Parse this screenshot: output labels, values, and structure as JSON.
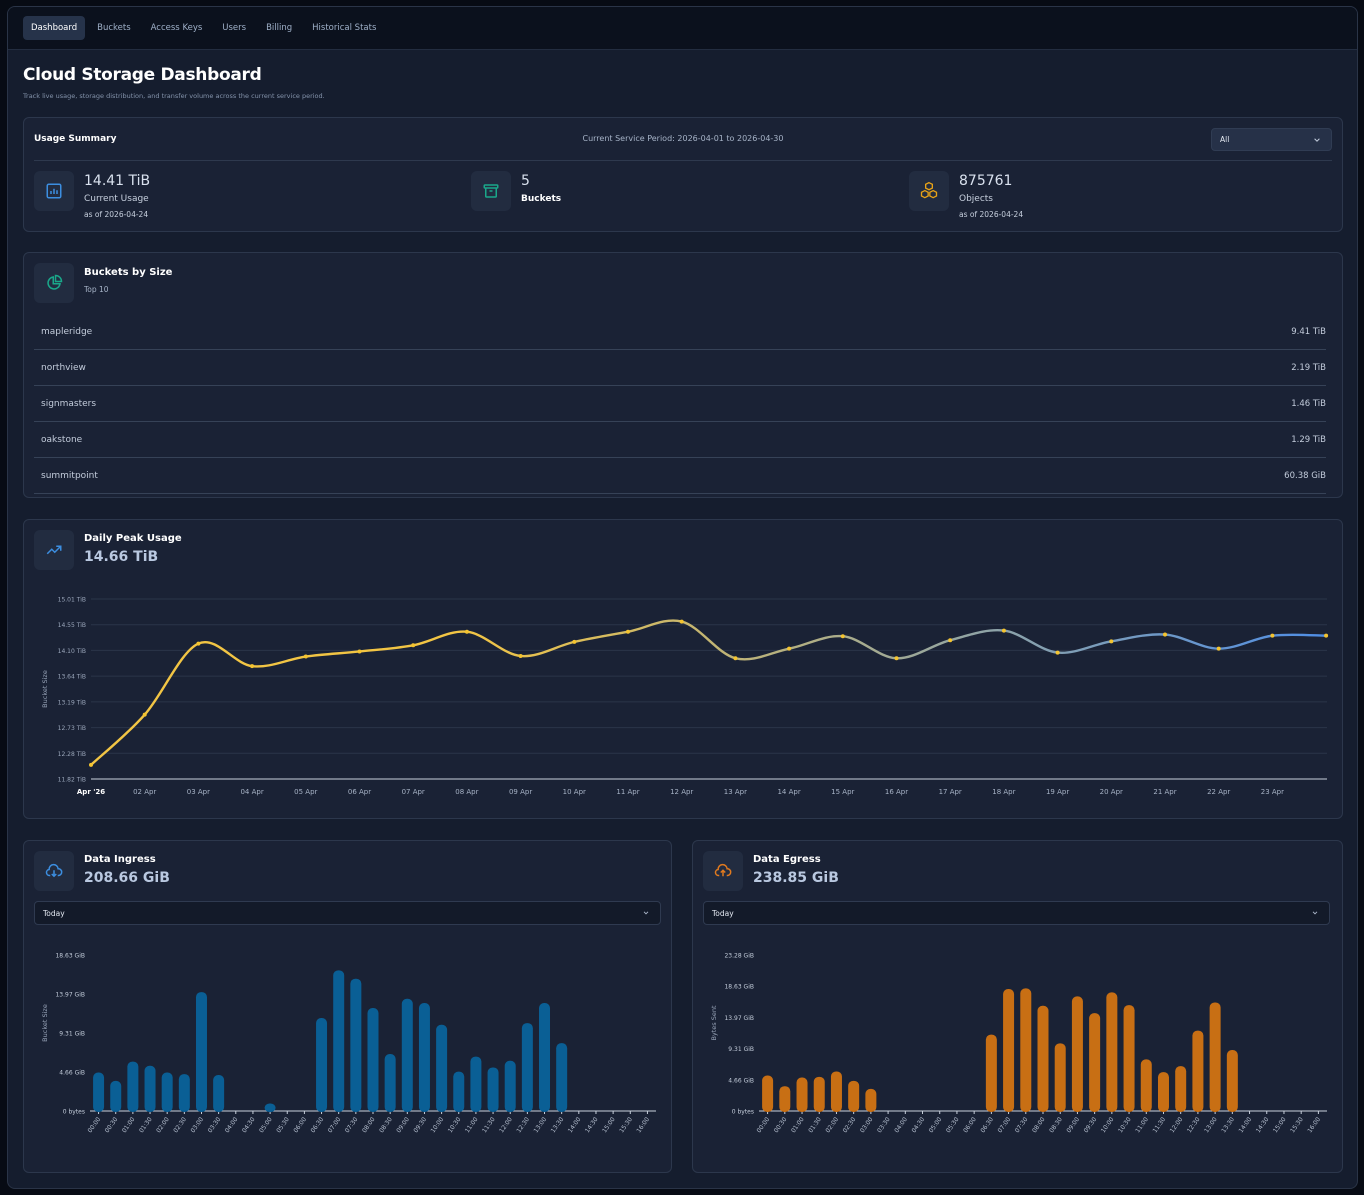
{
  "nav": {
    "tabs": [
      {
        "label": "Dashboard",
        "active": true
      },
      {
        "label": "Buckets"
      },
      {
        "label": "Access Keys"
      },
      {
        "label": "Users"
      },
      {
        "label": "Billing"
      },
      {
        "label": "Historical Stats"
      }
    ]
  },
  "page": {
    "title": "Cloud Storage Dashboard",
    "subtitle": "Track live usage, storage distribution, and transfer volume across the current service period."
  },
  "summary": {
    "title": "Usage Summary",
    "period": "Current Service Period: 2026-04-01 to 2026-04-30",
    "filter_value": "All",
    "current_usage": {
      "value": "14.41 TiB",
      "label": "Current Usage",
      "date": "as of 2026-04-24",
      "icon": "bar-chart-icon"
    },
    "buckets": {
      "value": "5",
      "label": "Buckets",
      "icon": "archive-box-icon"
    },
    "objects": {
      "value": "875761",
      "label": "Objects",
      "date": "as of 2026-04-24",
      "icon": "cubes-icon"
    }
  },
  "buckets_by_size": {
    "title": "Buckets by Size",
    "subtitle": "Top 10",
    "icon": "pie-chart-icon",
    "rows": [
      {
        "name": "mapleridge",
        "size": "9.41 TiB"
      },
      {
        "name": "northview",
        "size": "2.19 TiB"
      },
      {
        "name": "signmasters",
        "size": "1.46 TiB"
      },
      {
        "name": "oakstone",
        "size": "1.29 TiB"
      },
      {
        "name": "summitpoint",
        "size": "60.38 GiB"
      }
    ]
  },
  "peak": {
    "title": "Daily Peak Usage",
    "value": "14.66 TiB",
    "icon": "trending-up-icon"
  },
  "ingress": {
    "title": "Data Ingress",
    "value": "208.66 GiB",
    "range": "Today",
    "icon": "cloud-download-icon"
  },
  "egress": {
    "title": "Data Egress",
    "value": "238.85 GiB",
    "range": "Today",
    "icon": "cloud-upload-icon"
  },
  "colors": {
    "ingress": "#0a5f95",
    "egress": "#c86f14",
    "line_start": "#f2c544",
    "line_end": "#4f8ee6",
    "point": "#f4c430"
  },
  "chart_data": [
    {
      "type": "line",
      "title": "Daily Peak Usage",
      "ylabel": "Bucket Size",
      "ylim": [
        11.82,
        15.01
      ],
      "yticks": [
        "11.82 TiB",
        "12.28 TiB",
        "12.73 TiB",
        "13.19 TiB",
        "13.64 TiB",
        "14.10 TiB",
        "14.55 TiB",
        "15.01 TiB"
      ],
      "categories": [
        "Apr '26",
        "02 Apr",
        "03 Apr",
        "04 Apr",
        "05 Apr",
        "06 Apr",
        "07 Apr",
        "08 Apr",
        "09 Apr",
        "10 Apr",
        "11 Apr",
        "12 Apr",
        "13 Apr",
        "14 Apr",
        "15 Apr",
        "16 Apr",
        "17 Apr",
        "18 Apr",
        "19 Apr",
        "20 Apr",
        "21 Apr",
        "22 Apr",
        "23 Apr",
        ""
      ],
      "series": [
        {
          "values": [
            12.07,
            12.96,
            14.22,
            13.82,
            13.99,
            14.08,
            14.19,
            14.43,
            14.0,
            14.25,
            14.43,
            14.61,
            13.96,
            14.13,
            14.35,
            13.96,
            14.28,
            14.45,
            14.06,
            14.26,
            14.38,
            14.13,
            14.36,
            14.36
          ]
        }
      ]
    },
    {
      "type": "bar",
      "title": "Data Ingress",
      "ylabel": "Bucket Size",
      "yticks": [
        "0 bytes",
        "4.66 GiB",
        "9.31 GiB",
        "13.97 GiB",
        "18.63 GiB"
      ],
      "ymax_gib": 18.63,
      "categories": [
        "00:00",
        "00:30",
        "01:00",
        "01:30",
        "02:00",
        "02:30",
        "03:00",
        "03:30",
        "04:00",
        "04:30",
        "05:00",
        "05:30",
        "06:00",
        "06:30",
        "07:00",
        "07:30",
        "08:00",
        "08:30",
        "09:00",
        "09:30",
        "10:00",
        "10:30",
        "11:00",
        "11:30",
        "12:00",
        "12:30",
        "13:00",
        "13:30",
        "14:00",
        "14:30",
        "15:00",
        "15:30",
        "16:00"
      ],
      "values": [
        4.6,
        3.6,
        5.9,
        5.4,
        4.6,
        4.4,
        14.2,
        4.3,
        0,
        0,
        0.9,
        0,
        0,
        11.1,
        16.8,
        15.8,
        12.3,
        6.8,
        13.4,
        12.9,
        10.3,
        4.7,
        6.5,
        5.2,
        6.0,
        10.5,
        12.9,
        8.1,
        0,
        0,
        0,
        0,
        0
      ]
    },
    {
      "type": "bar",
      "title": "Data Egress",
      "ylabel": "Bytes Sent",
      "yticks": [
        "0 bytes",
        "4.66 GiB",
        "9.31 GiB",
        "13.97 GiB",
        "18.63 GiB",
        "23.28 GiB"
      ],
      "ymax_gib": 23.28,
      "categories": [
        "00:00",
        "00:30",
        "01:00",
        "01:30",
        "02:00",
        "02:30",
        "03:00",
        "03:30",
        "04:00",
        "04:30",
        "05:00",
        "05:30",
        "06:00",
        "06:30",
        "07:00",
        "07:30",
        "08:00",
        "08:30",
        "09:00",
        "09:30",
        "10:00",
        "10:30",
        "11:00",
        "11:30",
        "12:00",
        "12:30",
        "13:00",
        "13:30",
        "14:00",
        "14:30",
        "15:00",
        "15:30",
        "16:00"
      ],
      "values": [
        5.3,
        3.7,
        5.0,
        5.1,
        5.9,
        4.5,
        3.3,
        0,
        0,
        0,
        0,
        0,
        0,
        11.4,
        18.2,
        18.3,
        15.7,
        10.1,
        17.1,
        14.6,
        17.7,
        15.8,
        7.7,
        5.8,
        6.7,
        12.0,
        16.2,
        9.1,
        0,
        0,
        0,
        0,
        0
      ]
    }
  ]
}
